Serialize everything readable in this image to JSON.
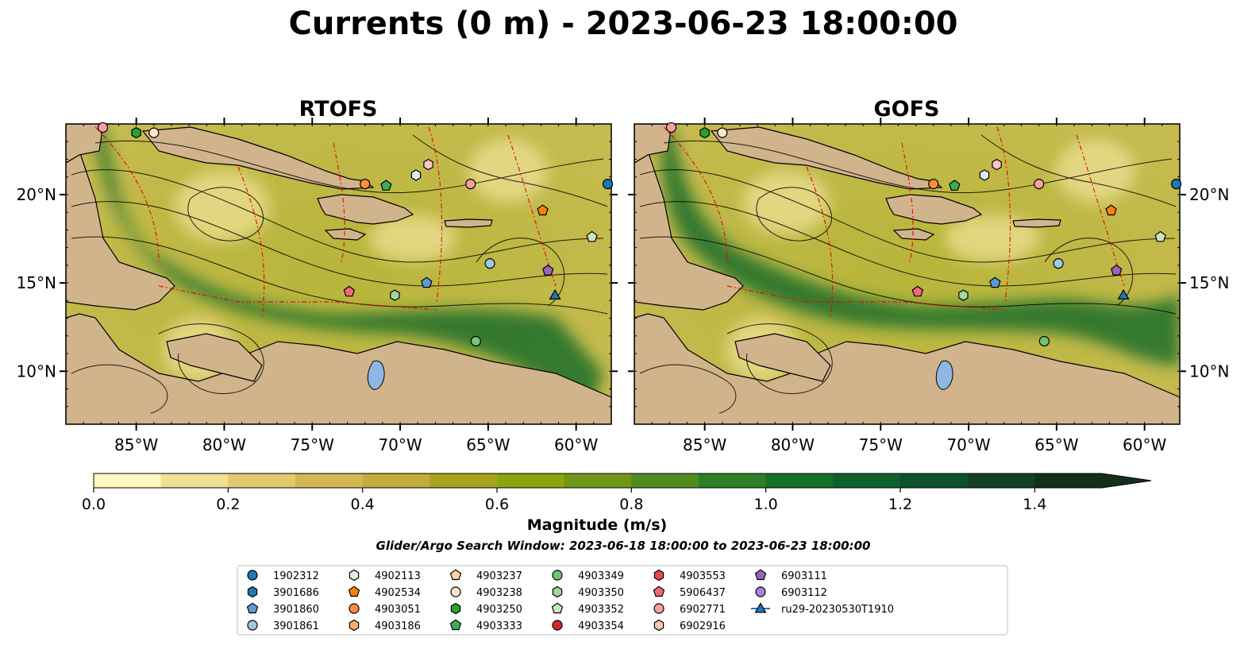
{
  "title": "Currents (0 m) - 2023-06-23 18:00:00",
  "chart_data": {
    "type": "heatmap",
    "panels": [
      {
        "name": "RTOFS"
      },
      {
        "name": "GOFS"
      }
    ],
    "x_ticks": [
      "85°W",
      "80°W",
      "75°W",
      "70°W",
      "65°W",
      "60°W"
    ],
    "x_tick_values": [
      -85,
      -80,
      -75,
      -70,
      -65,
      -60
    ],
    "y_ticks": [
      "20°N",
      "15°N",
      "10°N"
    ],
    "y_tick_values": [
      20,
      15,
      10
    ],
    "xlim": [
      -89,
      -58
    ],
    "ylim": [
      7,
      24
    ],
    "colorbar": {
      "label": "Magnitude (m/s)",
      "ticks": [
        "0.0",
        "0.2",
        "0.4",
        "0.6",
        "0.8",
        "1.0",
        "1.2",
        "1.4"
      ],
      "tick_values": [
        0.0,
        0.2,
        0.4,
        0.6,
        0.8,
        1.0,
        1.2,
        1.4
      ],
      "range": [
        0.0,
        1.5
      ],
      "extend": "max",
      "colors": [
        "#fff7bd",
        "#f0e196",
        "#e1c96f",
        "#d4b653",
        "#c2ad3c",
        "#a9a41f",
        "#8ea40f",
        "#6f9716",
        "#4f8b1f",
        "#2f7e26",
        "#127028",
        "#0f612c",
        "#0e522c",
        "#133f25",
        "#142e1c"
      ]
    },
    "search_window": "Glider/Argo Search Window: 2023-06-18 18:00:00 to 2023-06-23 18:00:00",
    "legend": [
      {
        "id": "1902312",
        "marker": "circle",
        "color": "#1f77b4"
      },
      {
        "id": "3901686",
        "marker": "hexagon",
        "color": "#1f77b4"
      },
      {
        "id": "3901860",
        "marker": "pentagon",
        "color": "#5b9bd5"
      },
      {
        "id": "3901861",
        "marker": "circle",
        "color": "#9ecae1"
      },
      {
        "id": "4902113",
        "marker": "hexagon",
        "color": "#deebf7"
      },
      {
        "id": "4902534",
        "marker": "pentagon",
        "color": "#ff7f0e"
      },
      {
        "id": "4903051",
        "marker": "circle",
        "color": "#fd8d3c"
      },
      {
        "id": "4903186",
        "marker": "hexagon",
        "color": "#fdae6b"
      },
      {
        "id": "4903237",
        "marker": "pentagon",
        "color": "#fdd0a2"
      },
      {
        "id": "4903238",
        "marker": "circle",
        "color": "#fee6ce"
      },
      {
        "id": "4903250",
        "marker": "hexagon",
        "color": "#2ca02c"
      },
      {
        "id": "4903333",
        "marker": "pentagon",
        "color": "#41ab5d"
      },
      {
        "id": "4903349",
        "marker": "circle",
        "color": "#74c476"
      },
      {
        "id": "4903350",
        "marker": "hexagon",
        "color": "#a1d99b"
      },
      {
        "id": "4903352",
        "marker": "pentagon",
        "color": "#c7e9c0"
      },
      {
        "id": "4903354",
        "marker": "circle",
        "color": "#d62728"
      },
      {
        "id": "4903553",
        "marker": "hexagon",
        "color": "#e34a4a"
      },
      {
        "id": "5906437",
        "marker": "pentagon",
        "color": "#f0697a"
      },
      {
        "id": "6902771",
        "marker": "circle",
        "color": "#f4a0a0"
      },
      {
        "id": "6902916",
        "marker": "hexagon",
        "color": "#fcc5c0"
      },
      {
        "id": "6903111",
        "marker": "pentagon",
        "color": "#9467bd"
      },
      {
        "id": "6903112",
        "marker": "circle",
        "color": "#a885d8"
      },
      {
        "id": "ru29-20230530T1910",
        "marker": "triangle",
        "color": "#1f77b4"
      }
    ],
    "floats": [
      {
        "id": "6902771",
        "lon": -86.9,
        "lat": 23.8
      },
      {
        "id": "4903250",
        "lon": -85.0,
        "lat": 23.5
      },
      {
        "id": "4903238",
        "lon": -84.0,
        "lat": 23.5
      },
      {
        "id": "4902113",
        "lon": -69.1,
        "lat": 21.1
      },
      {
        "id": "6902916",
        "lon": -68.4,
        "lat": 21.7
      },
      {
        "id": "4903051",
        "lon": -72.0,
        "lat": 20.6
      },
      {
        "id": "4903333",
        "lon": -70.8,
        "lat": 20.5
      },
      {
        "id": "6902771",
        "lon": -66.0,
        "lat": 20.6
      },
      {
        "id": "1902312",
        "lon": -58.2,
        "lat": 20.6
      },
      {
        "id": "4902534",
        "lon": -61.9,
        "lat": 19.1
      },
      {
        "id": "4903352",
        "lon": -59.1,
        "lat": 17.6
      },
      {
        "id": "3901861",
        "lon": -64.9,
        "lat": 16.1
      },
      {
        "id": "6903111",
        "lon": -61.6,
        "lat": 15.7
      },
      {
        "id": "3901860",
        "lon": -68.5,
        "lat": 15.0
      },
      {
        "id": "5906437",
        "lon": -72.9,
        "lat": 14.5
      },
      {
        "id": "4903350",
        "lon": -70.3,
        "lat": 14.3
      },
      {
        "id": "ru29-20230530T1910",
        "lon": -61.2,
        "lat": 14.3
      },
      {
        "id": "4903349",
        "lon": -65.7,
        "lat": 11.7
      }
    ]
  }
}
